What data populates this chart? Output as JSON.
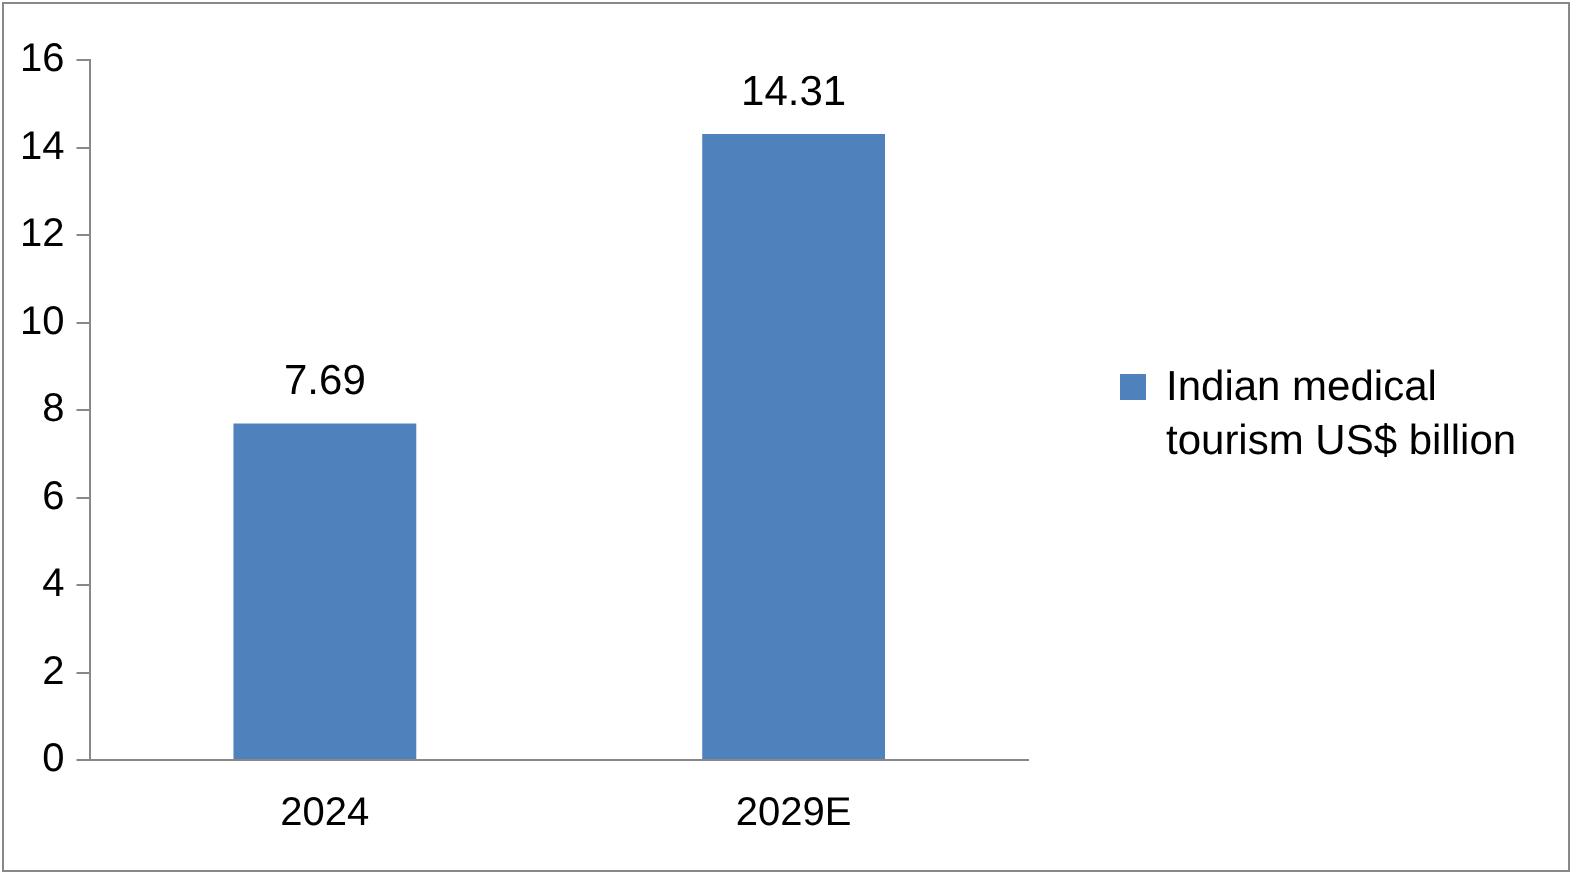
{
  "chart_data": {
    "type": "bar",
    "categories": [
      "2024",
      "2029E"
    ],
    "series": [
      {
        "name": "Indian medical tourism US$ billion",
        "color": "#4f81bd",
        "values": [
          7.69,
          14.31
        ]
      }
    ],
    "ylim": [
      0,
      16
    ],
    "yticks": [
      0,
      2,
      4,
      6,
      8,
      10,
      12,
      14,
      16
    ],
    "grid": false,
    "legend": "right",
    "data_labels": true
  }
}
